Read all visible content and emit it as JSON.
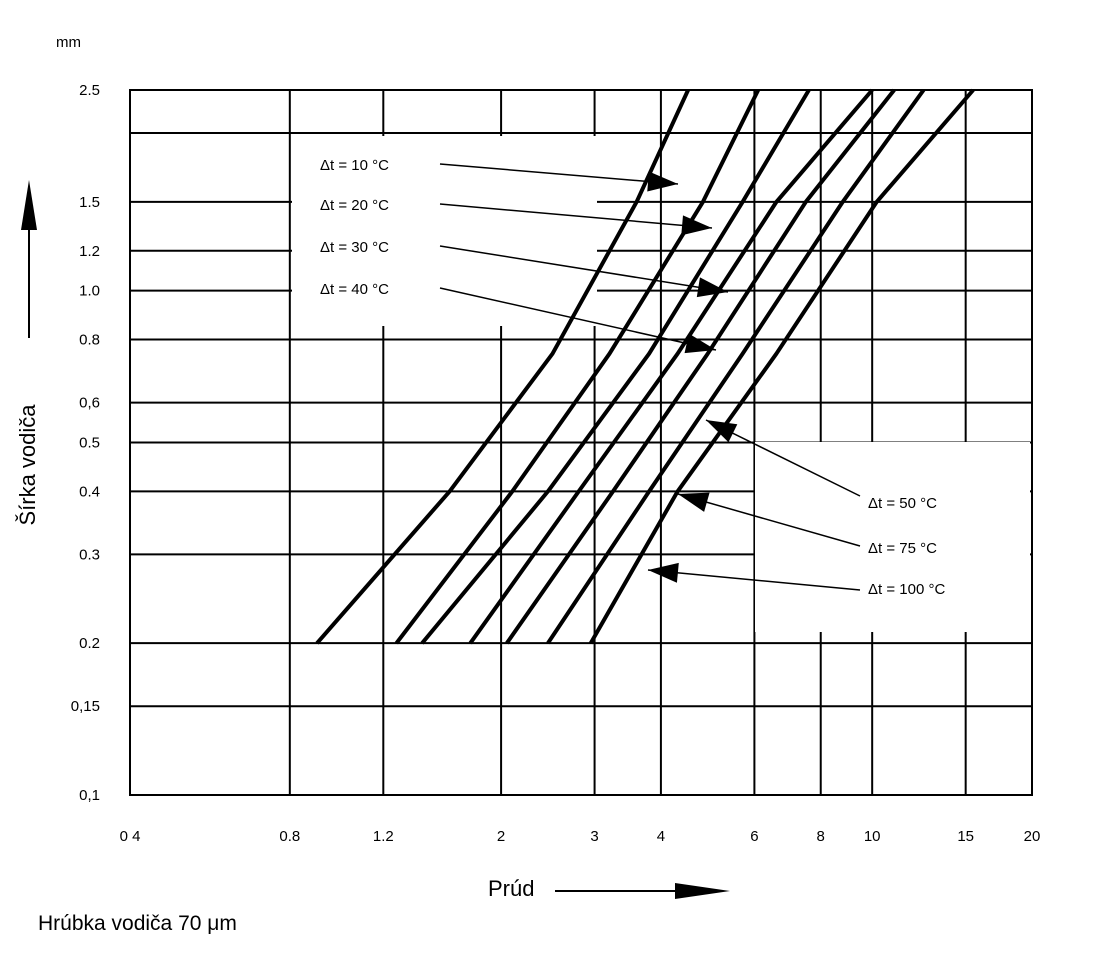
{
  "chart_data": {
    "type": "line",
    "xlabel": "Prúd",
    "ylabel": "Šírka vodiča",
    "yunit": "mm",
    "caption": "Hrúbka vodiča 70 μm",
    "xscale": "log",
    "yscale": "log",
    "xlim": [
      0.4,
      20
    ],
    "ylim": [
      0.1,
      2.5
    ],
    "xticks": [
      "0 4",
      "0.8",
      "1.2",
      "2",
      "3",
      "4",
      "6",
      "8",
      "10",
      "15",
      "20"
    ],
    "yticks": [
      "0,1",
      "0,15",
      "0.2",
      "0.3",
      "0.4",
      "0.5",
      "0,6",
      "0.8",
      "1.0",
      "1.2",
      "1.5",
      "2.5"
    ],
    "grid": true,
    "series": [
      {
        "name": "Δt = 10 °C",
        "points": [
          [
            0.9,
            0.2
          ],
          [
            1.6,
            0.4
          ],
          [
            2.5,
            0.75
          ],
          [
            3.6,
            1.5
          ],
          [
            4.5,
            2.5
          ]
        ]
      },
      {
        "name": "Δt = 20 °C",
        "points": [
          [
            1.27,
            0.2
          ],
          [
            2.1,
            0.4
          ],
          [
            3.2,
            0.75
          ],
          [
            4.8,
            1.5
          ],
          [
            6.1,
            2.5
          ]
        ]
      },
      {
        "name": "Δt = 30 °C",
        "points": [
          [
            1.42,
            0.2
          ],
          [
            2.45,
            0.4
          ],
          [
            3.8,
            0.75
          ],
          [
            5.7,
            1.5
          ],
          [
            7.6,
            2.5
          ]
        ]
      },
      {
        "name": "Δt = 40 °C",
        "points": [
          [
            1.75,
            0.2
          ],
          [
            2.8,
            0.4
          ],
          [
            4.3,
            0.75
          ],
          [
            6.6,
            1.5
          ],
          [
            10,
            2.5
          ]
        ]
      },
      {
        "name": "Δt = 50 °C",
        "points": [
          [
            2.05,
            0.2
          ],
          [
            3.25,
            0.4
          ],
          [
            4.9,
            0.75
          ],
          [
            7.5,
            1.5
          ],
          [
            11,
            2.5
          ]
        ]
      },
      {
        "name": "Δt = 75 °C",
        "points": [
          [
            2.45,
            0.2
          ],
          [
            3.8,
            0.4
          ],
          [
            5.7,
            0.75
          ],
          [
            8.8,
            1.5
          ],
          [
            12.5,
            2.5
          ]
        ]
      },
      {
        "name": "Δt = 100 °C",
        "points": [
          [
            2.95,
            0.2
          ],
          [
            4.3,
            0.4
          ],
          [
            6.6,
            0.75
          ],
          [
            10.2,
            1.5
          ],
          [
            15.5,
            2.5
          ]
        ]
      }
    ]
  }
}
